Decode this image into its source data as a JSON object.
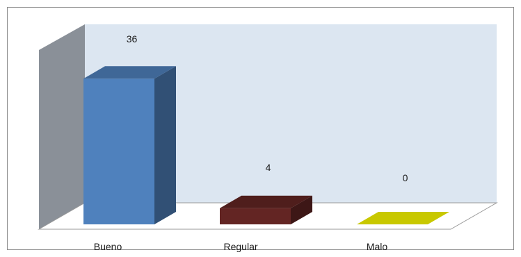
{
  "chart_data": {
    "type": "bar",
    "categories": [
      "Bueno",
      "Regular",
      "Malo"
    ],
    "values": [
      36,
      4,
      0
    ],
    "data_labels": [
      "36",
      "4",
      "0"
    ],
    "title": "",
    "xlabel": "",
    "ylabel": "",
    "ylim": [
      0,
      40
    ],
    "grid": false,
    "legend": "none",
    "three_d": true,
    "colors": {
      "bars": [
        "#4f81bd",
        "#632523",
        "#c8c800"
      ],
      "back_wall": "#dce6f1",
      "side_wall": "#8a9098",
      "floor": "#ffffff"
    }
  }
}
